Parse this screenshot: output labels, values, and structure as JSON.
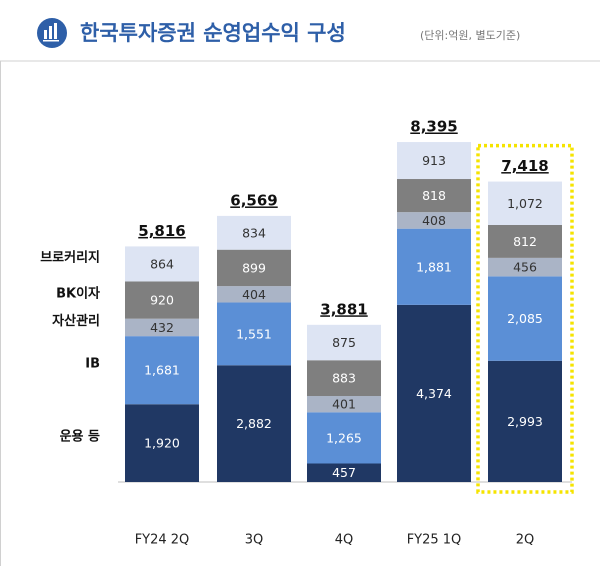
{
  "chart_data": {
    "type": "stacked-bar",
    "title": "한국투자증권 순영업수익 구성",
    "subtitle": "(단위:억원, 별도기준)",
    "categories": [
      "FY24 2Q",
      "3Q",
      "4Q",
      "FY25 1Q",
      "2Q"
    ],
    "series": [
      {
        "name": "운용 등",
        "color": "#203864",
        "values": [
          1920,
          2882,
          457,
          4374,
          2993
        ],
        "value_labels": [
          "1,920",
          "2,882",
          "457",
          "4,374",
          "2,993"
        ]
      },
      {
        "name": "IB",
        "color": "#5b8fd6",
        "values": [
          1681,
          1551,
          1265,
          1881,
          2085
        ],
        "value_labels": [
          "1,681",
          "1,551",
          "1,265",
          "1,881",
          "2,085"
        ]
      },
      {
        "name": "자산관리",
        "color": "#aab4c6",
        "values": [
          432,
          404,
          401,
          408,
          456
        ]
      },
      {
        "name": "BK이자",
        "color": "#7f7f7f",
        "values": [
          920,
          899,
          883,
          818,
          812
        ]
      },
      {
        "name": "브로커리지",
        "color": "#dde4f3",
        "values": [
          864,
          834,
          875,
          913,
          1072
        ],
        "value_labels": [
          "864",
          "834",
          "875",
          "913",
          "1,072"
        ]
      }
    ],
    "totals": {
      "values": [
        5816,
        6569,
        3881,
        8395,
        7418
      ],
      "value_labels": [
        "5,816",
        "6,569",
        "3,881",
        "8,395",
        "7,418"
      ]
    }
  }
}
